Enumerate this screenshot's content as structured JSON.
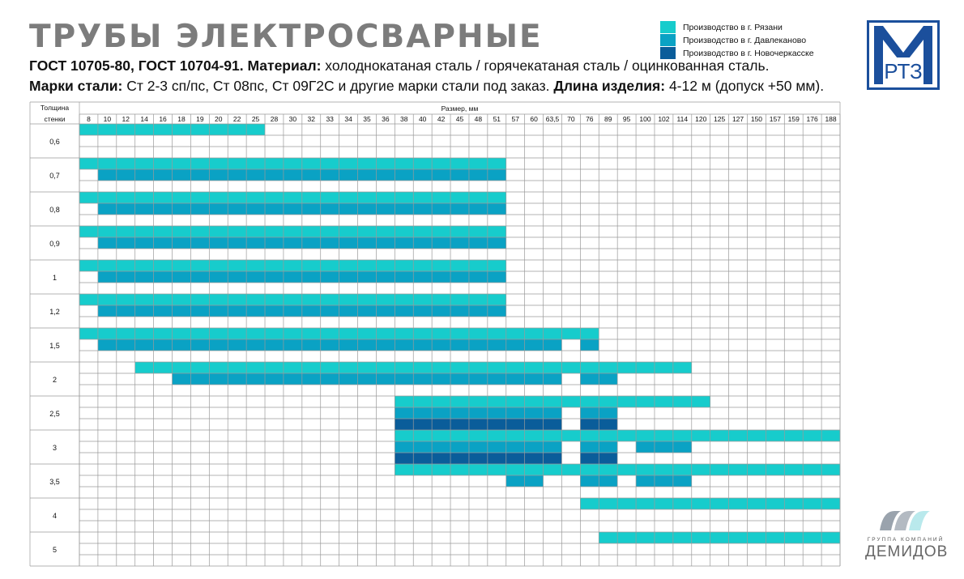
{
  "header": {
    "title": "ТРУБЫ ЭЛЕКТРОСВАРНЫЕ",
    "gost_label": "ГОСТ 10705-80, ГОСТ 10704-91. Материал:",
    "gost_value": " холоднокатаная сталь / горячекатаная сталь / оцинкованная сталь.",
    "steel_label": "Марки стали:",
    "steel_value": " Ст 2-3 сп/пс, Ст 08пс, Ст 09Г2С и другие марки стали под заказ.",
    "length_label": " Длина изделия:",
    "length_value": " 4-12 м (допуск +50 мм)."
  },
  "legend": [
    {
      "label": "Производство в г. Рязани",
      "color": "#17cccc"
    },
    {
      "label": "Производство в г. Давлеканово",
      "color": "#0aa2c4"
    },
    {
      "label": "Производство в г. Новочеркасске",
      "color": "#0a5d9a"
    }
  ],
  "logo": {
    "text": "МРТЗ",
    "color": "#1b4f9c"
  },
  "table": {
    "corner_line1": "Толщина",
    "corner_line2": "стенки",
    "size_header": "Размер, мм",
    "sizes": [
      "8",
      "10",
      "12",
      "14",
      "16",
      "18",
      "19",
      "20",
      "22",
      "25",
      "28",
      "30",
      "32",
      "33",
      "34",
      "35",
      "36",
      "38",
      "40",
      "42",
      "45",
      "48",
      "51",
      "57",
      "60",
      "63,5",
      "70",
      "76",
      "89",
      "95",
      "100",
      "102",
      "114",
      "120",
      "125",
      "127",
      "150",
      "157",
      "159",
      "176",
      "188"
    ],
    "rows": [
      {
        "label": "0,6",
        "lines": [
          [
            [
              0,
              9,
              "r"
            ]
          ],
          [],
          []
        ]
      },
      {
        "label": "0,7",
        "lines": [
          [
            [
              0,
              22,
              "r"
            ]
          ],
          [
            [
              1,
              22,
              "d"
            ]
          ],
          []
        ]
      },
      {
        "label": "0,8",
        "lines": [
          [
            [
              0,
              22,
              "r"
            ]
          ],
          [
            [
              1,
              22,
              "d"
            ]
          ],
          []
        ]
      },
      {
        "label": "0,9",
        "lines": [
          [
            [
              0,
              22,
              "r"
            ]
          ],
          [
            [
              1,
              22,
              "d"
            ]
          ],
          []
        ]
      },
      {
        "label": "1",
        "lines": [
          [
            [
              0,
              22,
              "r"
            ]
          ],
          [
            [
              1,
              22,
              "d"
            ]
          ],
          []
        ]
      },
      {
        "label": "1,2",
        "lines": [
          [
            [
              0,
              22,
              "r"
            ]
          ],
          [
            [
              1,
              22,
              "d"
            ]
          ],
          []
        ]
      },
      {
        "label": "1,5",
        "lines": [
          [
            [
              0,
              27,
              "r"
            ]
          ],
          [
            [
              1,
              25,
              "d"
            ],
            [
              27,
              27,
              "d"
            ]
          ],
          []
        ]
      },
      {
        "label": "2",
        "lines": [
          [
            [
              3,
              32,
              "r"
            ]
          ],
          [
            [
              5,
              25,
              "d"
            ],
            [
              27,
              28,
              "d"
            ]
          ],
          []
        ]
      },
      {
        "label": "2,5",
        "lines": [
          [
            [
              17,
              33,
              "r"
            ]
          ],
          [
            [
              17,
              25,
              "d"
            ],
            [
              27,
              28,
              "d"
            ]
          ],
          [
            [
              17,
              25,
              "n"
            ],
            [
              27,
              28,
              "n"
            ]
          ]
        ]
      },
      {
        "label": "3",
        "lines": [
          [
            [
              17,
              40,
              "r"
            ]
          ],
          [
            [
              17,
              25,
              "d"
            ],
            [
              27,
              28,
              "d"
            ],
            [
              30,
              32,
              "d"
            ]
          ],
          [
            [
              17,
              25,
              "n"
            ],
            [
              27,
              28,
              "n"
            ]
          ]
        ]
      },
      {
        "label": "3,5",
        "lines": [
          [
            [
              17,
              40,
              "r"
            ]
          ],
          [
            [
              23,
              24,
              "d"
            ],
            [
              27,
              28,
              "d"
            ],
            [
              30,
              32,
              "d"
            ]
          ],
          []
        ]
      },
      {
        "label": "4",
        "lines": [
          [
            [
              27,
              40,
              "r"
            ]
          ],
          [],
          []
        ]
      },
      {
        "label": "5",
        "lines": [
          [
            [
              28,
              40,
              "r"
            ]
          ],
          [],
          []
        ]
      }
    ]
  },
  "brand": {
    "small": "ГРУППА КОМПАНИЙ",
    "big": "ДЕМИДОВ"
  }
}
